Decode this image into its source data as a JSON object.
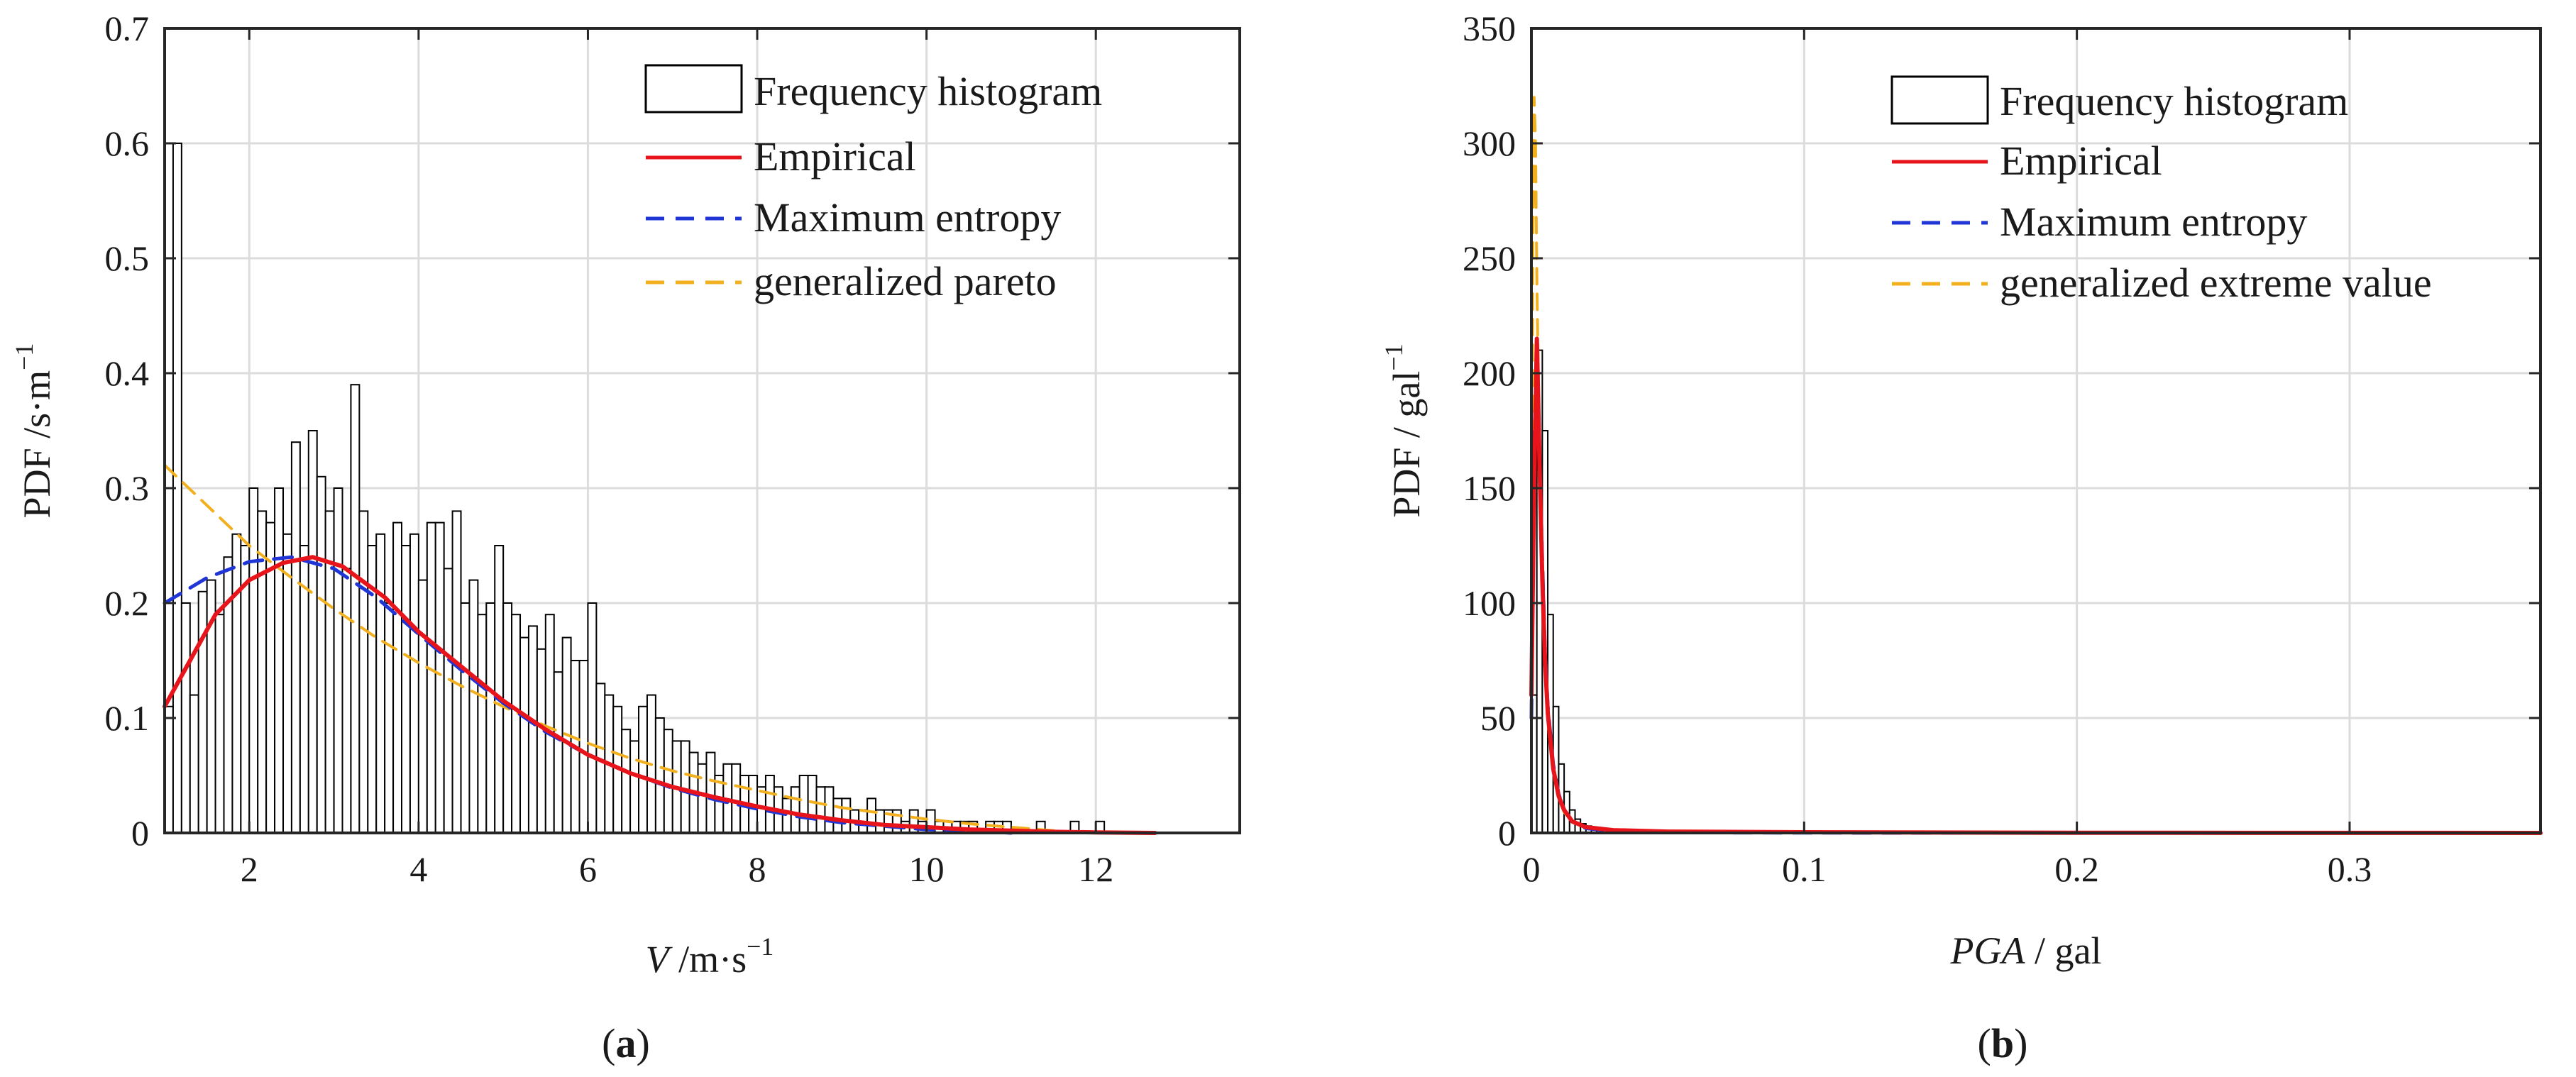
{
  "chart_data": [
    {
      "type": "bar",
      "panel_label": "(a)",
      "panel_letter": "a",
      "xlabel_var": "V",
      "xlabel_unit": " /m·s",
      "xlabel_exp": "−1",
      "ylabel_main": "PDF /s·m",
      "ylabel_exp": "−1",
      "xlim": [
        1,
        13.7
      ],
      "ylim": [
        0,
        0.7
      ],
      "grid": true,
      "legend_position": "top-right",
      "xticks": [
        2,
        4,
        6,
        8,
        10,
        12
      ],
      "xtick_labels": [
        "2",
        "4",
        "6",
        "8",
        "10",
        "12"
      ],
      "yticks": [
        0,
        0.1,
        0.2,
        0.3,
        0.4,
        0.5,
        0.6,
        0.7
      ],
      "ytick_labels": [
        "0",
        "0.1",
        "0.2",
        "0.3",
        "0.4",
        "0.5",
        "0.6",
        "0.7"
      ],
      "legend": [
        "Frequency histogram",
        "Empirical",
        "Maximum entropy",
        "generalized pareto"
      ],
      "colors": {
        "histogram": "#000000",
        "empirical": "#e8141b",
        "max_entropy": "#1f35d6",
        "fit": "#f2b01e"
      },
      "histogram": {
        "bin_start": 1.0,
        "bin_width": 0.1,
        "values": [
          0.11,
          0.6,
          0.2,
          0.12,
          0.21,
          0.22,
          0.19,
          0.24,
          0.26,
          0.25,
          0.3,
          0.28,
          0.27,
          0.3,
          0.26,
          0.34,
          0.25,
          0.35,
          0.31,
          0.28,
          0.3,
          0.23,
          0.39,
          0.28,
          0.25,
          0.26,
          0.2,
          0.27,
          0.25,
          0.26,
          0.22,
          0.27,
          0.27,
          0.23,
          0.28,
          0.2,
          0.22,
          0.19,
          0.2,
          0.25,
          0.2,
          0.19,
          0.17,
          0.18,
          0.16,
          0.19,
          0.14,
          0.17,
          0.15,
          0.15,
          0.2,
          0.13,
          0.12,
          0.11,
          0.09,
          0.08,
          0.11,
          0.12,
          0.1,
          0.09,
          0.08,
          0.08,
          0.07,
          0.06,
          0.07,
          0.05,
          0.06,
          0.06,
          0.05,
          0.05,
          0.04,
          0.05,
          0.04,
          0.03,
          0.04,
          0.05,
          0.05,
          0.04,
          0.04,
          0.03,
          0.03,
          0.02,
          0.02,
          0.03,
          0.02,
          0.02,
          0.02,
          0.01,
          0.02,
          0.01,
          0.02,
          0.01,
          0.01,
          0.01,
          0.01,
          0.01,
          0.0,
          0.01,
          0.01,
          0.01,
          0.0,
          0.0,
          0.0,
          0.01,
          0.0,
          0.0,
          0.0,
          0.01,
          0.0,
          0.0,
          0.01,
          0.0,
          0.0,
          0.0,
          0.0,
          0.0,
          0.0,
          0.0,
          0.0,
          0.0,
          0.0,
          0.0,
          0.0,
          0.0,
          0.0,
          0.0
        ]
      },
      "series": [
        {
          "name": "Empirical",
          "x": [
            1.0,
            1.3,
            1.6,
            2.0,
            2.4,
            2.75,
            3.1,
            3.6,
            4.0,
            4.5,
            5.0,
            5.5,
            6.0,
            6.5,
            7.0,
            7.5,
            8.0,
            8.5,
            9.0,
            9.5,
            10.0,
            10.5,
            11.0,
            11.5,
            12.0,
            12.7
          ],
          "y": [
            0.11,
            0.15,
            0.19,
            0.22,
            0.235,
            0.24,
            0.232,
            0.205,
            0.175,
            0.145,
            0.115,
            0.09,
            0.068,
            0.052,
            0.04,
            0.031,
            0.023,
            0.016,
            0.011,
            0.007,
            0.005,
            0.003,
            0.002,
            0.001,
            0.0005,
            0.0
          ]
        },
        {
          "name": "Maximum entropy",
          "x": [
            1.0,
            1.5,
            2.0,
            2.5,
            3.0,
            3.5,
            4.0,
            4.5,
            5.0,
            5.5,
            6.0,
            6.5,
            7.0,
            7.5,
            8.0,
            8.5,
            9.0,
            9.5,
            10.0,
            10.5,
            11.0
          ],
          "y": [
            0.2,
            0.222,
            0.236,
            0.24,
            0.23,
            0.205,
            0.173,
            0.142,
            0.113,
            0.088,
            0.068,
            0.052,
            0.039,
            0.029,
            0.021,
            0.014,
            0.009,
            0.006,
            0.003,
            0.002,
            0.0
          ]
        },
        {
          "name": "generalized pareto",
          "x": [
            1.0,
            1.5,
            2.0,
            2.5,
            3.0,
            3.5,
            4.0,
            4.5,
            5.0,
            5.5,
            6.0,
            6.5,
            7.0,
            7.5,
            8.0,
            8.5,
            9.0,
            9.5,
            10.0,
            10.5,
            11.0,
            11.5
          ],
          "y": [
            0.32,
            0.285,
            0.25,
            0.222,
            0.195,
            0.17,
            0.148,
            0.128,
            0.11,
            0.093,
            0.078,
            0.065,
            0.054,
            0.045,
            0.037,
            0.029,
            0.022,
            0.017,
            0.012,
            0.008,
            0.005,
            0.002
          ]
        }
      ]
    },
    {
      "type": "bar",
      "panel_label": "(b)",
      "panel_letter": "b",
      "xlabel_var": "PGA",
      "xlabel_unit": " / gal",
      "ylabel_main": "PDF / gal",
      "ylabel_exp": "−1",
      "xlim": [
        0,
        0.37
      ],
      "ylim": [
        0,
        350
      ],
      "grid": true,
      "legend_position": "top-right",
      "xticks": [
        0,
        0.1,
        0.2,
        0.3
      ],
      "xtick_labels": [
        "0",
        "0.1",
        "0.2",
        "0.3"
      ],
      "yticks": [
        0,
        50,
        100,
        150,
        200,
        250,
        300,
        350
      ],
      "ytick_labels": [
        "0",
        "50",
        "100",
        "150",
        "200",
        "250",
        "300",
        "350"
      ],
      "legend": [
        "Frequency histogram",
        "Empirical",
        "Maximum entropy",
        "generalized extreme value"
      ],
      "colors": {
        "histogram": "#000000",
        "empirical": "#e8141b",
        "max_entropy": "#1f35d6",
        "fit": "#f2b01e"
      },
      "histogram": {
        "bin_start": 0.0,
        "bin_width": 0.002,
        "values": [
          60,
          210,
          175,
          95,
          55,
          30,
          18,
          10,
          6,
          4,
          3,
          2,
          2,
          1,
          1,
          1,
          1,
          1,
          0,
          0
        ]
      },
      "series": [
        {
          "name": "Empirical",
          "x": [
            0.0,
            0.001,
            0.002,
            0.003,
            0.004,
            0.005,
            0.006,
            0.008,
            0.01,
            0.012,
            0.015,
            0.02,
            0.03,
            0.05,
            0.1,
            0.2,
            0.37
          ],
          "y": [
            60,
            150,
            215,
            160,
            110,
            75,
            52,
            28,
            16,
            10,
            5,
            2.5,
            1.2,
            0.6,
            0.3,
            0.1,
            0.0
          ]
        },
        {
          "name": "Maximum entropy",
          "x": [
            0.0,
            0.001,
            0.002,
            0.003,
            0.004,
            0.005,
            0.006,
            0.008,
            0.01,
            0.012,
            0.015,
            0.02,
            0.03,
            0.05,
            0.1,
            0.37
          ],
          "y": [
            50,
            170,
            205,
            165,
            118,
            80,
            55,
            30,
            17,
            10,
            5,
            2,
            0.8,
            0.2,
            0.05,
            0.0
          ]
        },
        {
          "name": "generalized extreme value",
          "x": [
            0.0,
            0.0005,
            0.001,
            0.0015,
            0.002,
            0.003,
            0.004,
            0.005,
            0.006,
            0.008,
            0.01,
            0.012,
            0.015,
            0.02,
            0.03,
            0.05,
            0.1,
            0.37
          ],
          "y": [
            50,
            250,
            320,
            300,
            240,
            160,
            105,
            70,
            48,
            26,
            15,
            9,
            5,
            2,
            0.8,
            0.3,
            0.1,
            0.0
          ]
        }
      ]
    }
  ]
}
